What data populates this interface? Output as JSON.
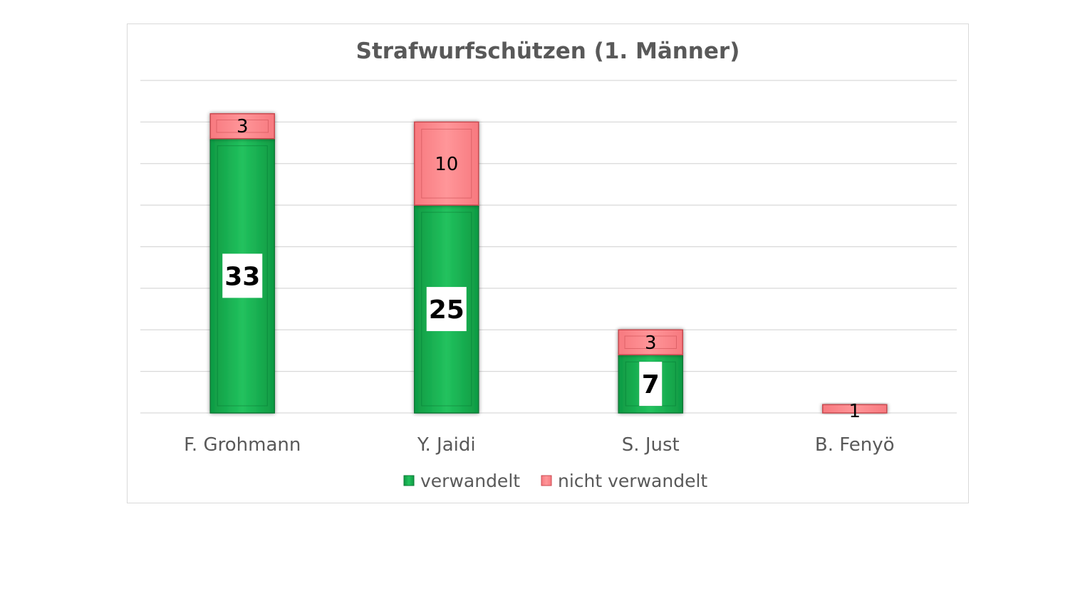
{
  "chart_data": {
    "type": "bar",
    "stacked": true,
    "title": "Strafwurfschützen (1. Männer)",
    "xlabel": "",
    "ylabel": "",
    "categories": [
      "F. Grohmann",
      "Y. Jaidi",
      "S. Just",
      "B. Fenyö"
    ],
    "series": [
      {
        "name": "verwandelt",
        "values": [
          33,
          25,
          7,
          0
        ],
        "color": "#1db954"
      },
      {
        "name": "nicht verwandelt",
        "values": [
          3,
          10,
          3,
          1
        ],
        "color": "#ff8a8e"
      }
    ],
    "ylim": [
      0,
      40
    ],
    "grid": true,
    "gridline_count": 9,
    "legend": "bottom"
  }
}
